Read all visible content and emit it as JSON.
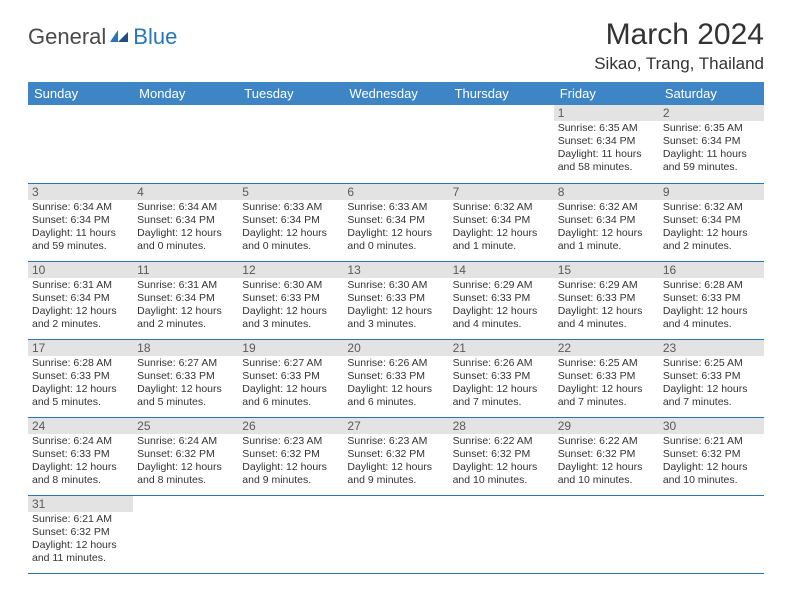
{
  "logo": {
    "general": "General",
    "blue": "Blue"
  },
  "title": "March 2024",
  "location": "Sikao, Trang, Thailand",
  "colors": {
    "header_bg": "#3e85c6",
    "header_fg": "#ffffff",
    "row_divider": "#2876b8",
    "daynum_bg": "#e3e3e3",
    "daynum_fg": "#5a5a5a",
    "logo_accent": "#2876b8"
  },
  "weekdays": [
    "Sunday",
    "Monday",
    "Tuesday",
    "Wednesday",
    "Thursday",
    "Friday",
    "Saturday"
  ],
  "weeks": [
    [
      null,
      null,
      null,
      null,
      null,
      {
        "n": 1,
        "sr": "Sunrise: 6:35 AM",
        "ss": "Sunset: 6:34 PM",
        "dl": "Daylight: 11 hours and 58 minutes."
      },
      {
        "n": 2,
        "sr": "Sunrise: 6:35 AM",
        "ss": "Sunset: 6:34 PM",
        "dl": "Daylight: 11 hours and 59 minutes."
      }
    ],
    [
      {
        "n": 3,
        "sr": "Sunrise: 6:34 AM",
        "ss": "Sunset: 6:34 PM",
        "dl": "Daylight: 11 hours and 59 minutes."
      },
      {
        "n": 4,
        "sr": "Sunrise: 6:34 AM",
        "ss": "Sunset: 6:34 PM",
        "dl": "Daylight: 12 hours and 0 minutes."
      },
      {
        "n": 5,
        "sr": "Sunrise: 6:33 AM",
        "ss": "Sunset: 6:34 PM",
        "dl": "Daylight: 12 hours and 0 minutes."
      },
      {
        "n": 6,
        "sr": "Sunrise: 6:33 AM",
        "ss": "Sunset: 6:34 PM",
        "dl": "Daylight: 12 hours and 0 minutes."
      },
      {
        "n": 7,
        "sr": "Sunrise: 6:32 AM",
        "ss": "Sunset: 6:34 PM",
        "dl": "Daylight: 12 hours and 1 minute."
      },
      {
        "n": 8,
        "sr": "Sunrise: 6:32 AM",
        "ss": "Sunset: 6:34 PM",
        "dl": "Daylight: 12 hours and 1 minute."
      },
      {
        "n": 9,
        "sr": "Sunrise: 6:32 AM",
        "ss": "Sunset: 6:34 PM",
        "dl": "Daylight: 12 hours and 2 minutes."
      }
    ],
    [
      {
        "n": 10,
        "sr": "Sunrise: 6:31 AM",
        "ss": "Sunset: 6:34 PM",
        "dl": "Daylight: 12 hours and 2 minutes."
      },
      {
        "n": 11,
        "sr": "Sunrise: 6:31 AM",
        "ss": "Sunset: 6:34 PM",
        "dl": "Daylight: 12 hours and 2 minutes."
      },
      {
        "n": 12,
        "sr": "Sunrise: 6:30 AM",
        "ss": "Sunset: 6:33 PM",
        "dl": "Daylight: 12 hours and 3 minutes."
      },
      {
        "n": 13,
        "sr": "Sunrise: 6:30 AM",
        "ss": "Sunset: 6:33 PM",
        "dl": "Daylight: 12 hours and 3 minutes."
      },
      {
        "n": 14,
        "sr": "Sunrise: 6:29 AM",
        "ss": "Sunset: 6:33 PM",
        "dl": "Daylight: 12 hours and 4 minutes."
      },
      {
        "n": 15,
        "sr": "Sunrise: 6:29 AM",
        "ss": "Sunset: 6:33 PM",
        "dl": "Daylight: 12 hours and 4 minutes."
      },
      {
        "n": 16,
        "sr": "Sunrise: 6:28 AM",
        "ss": "Sunset: 6:33 PM",
        "dl": "Daylight: 12 hours and 4 minutes."
      }
    ],
    [
      {
        "n": 17,
        "sr": "Sunrise: 6:28 AM",
        "ss": "Sunset: 6:33 PM",
        "dl": "Daylight: 12 hours and 5 minutes."
      },
      {
        "n": 18,
        "sr": "Sunrise: 6:27 AM",
        "ss": "Sunset: 6:33 PM",
        "dl": "Daylight: 12 hours and 5 minutes."
      },
      {
        "n": 19,
        "sr": "Sunrise: 6:27 AM",
        "ss": "Sunset: 6:33 PM",
        "dl": "Daylight: 12 hours and 6 minutes."
      },
      {
        "n": 20,
        "sr": "Sunrise: 6:26 AM",
        "ss": "Sunset: 6:33 PM",
        "dl": "Daylight: 12 hours and 6 minutes."
      },
      {
        "n": 21,
        "sr": "Sunrise: 6:26 AM",
        "ss": "Sunset: 6:33 PM",
        "dl": "Daylight: 12 hours and 7 minutes."
      },
      {
        "n": 22,
        "sr": "Sunrise: 6:25 AM",
        "ss": "Sunset: 6:33 PM",
        "dl": "Daylight: 12 hours and 7 minutes."
      },
      {
        "n": 23,
        "sr": "Sunrise: 6:25 AM",
        "ss": "Sunset: 6:33 PM",
        "dl": "Daylight: 12 hours and 7 minutes."
      }
    ],
    [
      {
        "n": 24,
        "sr": "Sunrise: 6:24 AM",
        "ss": "Sunset: 6:33 PM",
        "dl": "Daylight: 12 hours and 8 minutes."
      },
      {
        "n": 25,
        "sr": "Sunrise: 6:24 AM",
        "ss": "Sunset: 6:32 PM",
        "dl": "Daylight: 12 hours and 8 minutes."
      },
      {
        "n": 26,
        "sr": "Sunrise: 6:23 AM",
        "ss": "Sunset: 6:32 PM",
        "dl": "Daylight: 12 hours and 9 minutes."
      },
      {
        "n": 27,
        "sr": "Sunrise: 6:23 AM",
        "ss": "Sunset: 6:32 PM",
        "dl": "Daylight: 12 hours and 9 minutes."
      },
      {
        "n": 28,
        "sr": "Sunrise: 6:22 AM",
        "ss": "Sunset: 6:32 PM",
        "dl": "Daylight: 12 hours and 10 minutes."
      },
      {
        "n": 29,
        "sr": "Sunrise: 6:22 AM",
        "ss": "Sunset: 6:32 PM",
        "dl": "Daylight: 12 hours and 10 minutes."
      },
      {
        "n": 30,
        "sr": "Sunrise: 6:21 AM",
        "ss": "Sunset: 6:32 PM",
        "dl": "Daylight: 12 hours and 10 minutes."
      }
    ],
    [
      {
        "n": 31,
        "sr": "Sunrise: 6:21 AM",
        "ss": "Sunset: 6:32 PM",
        "dl": "Daylight: 12 hours and 11 minutes."
      },
      null,
      null,
      null,
      null,
      null,
      null
    ]
  ]
}
